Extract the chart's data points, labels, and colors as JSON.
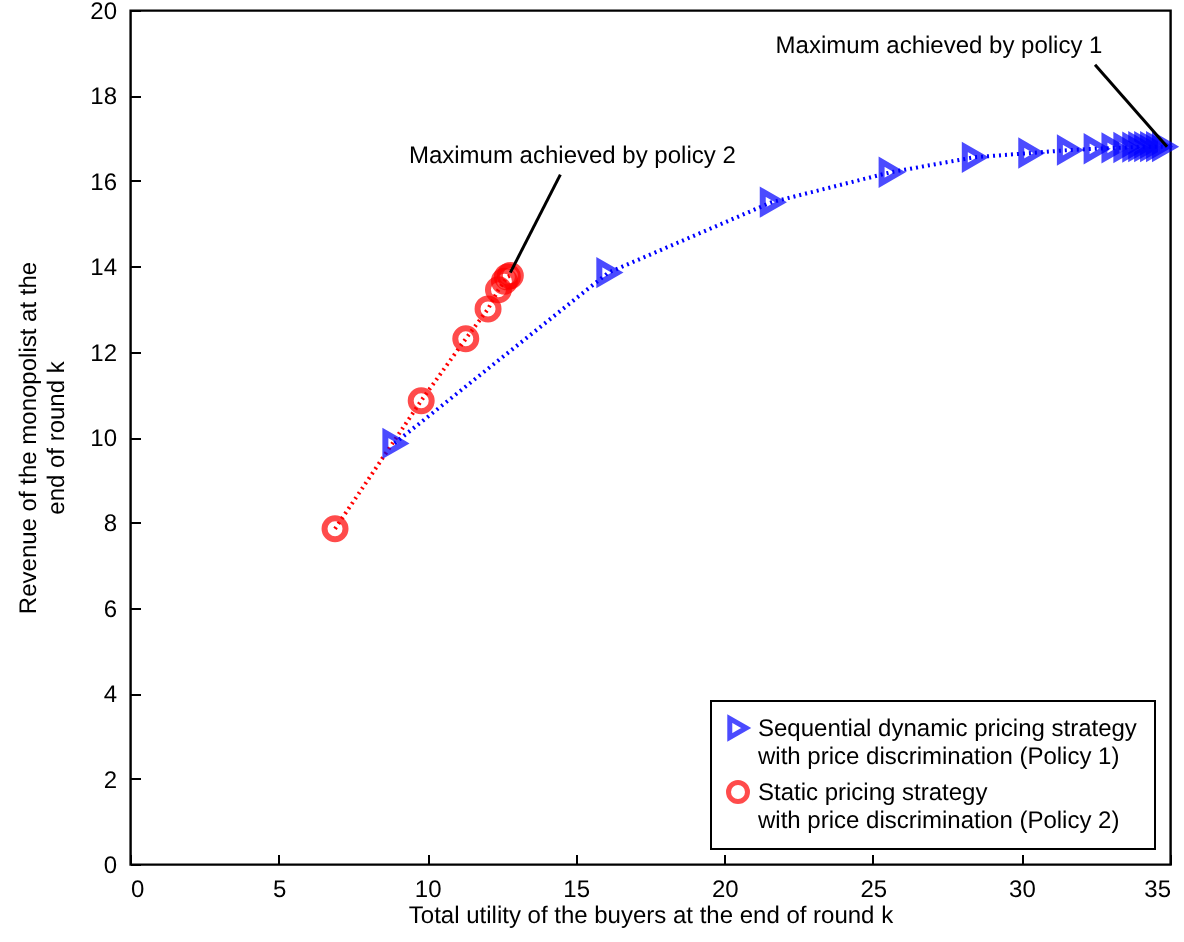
{
  "chart_data": {
    "type": "line",
    "xlabel": "Total utility of the buyers at the end of round k",
    "ylabel": "Revenue of the monopolist at the\nend of round k",
    "xlim": [
      0,
      35
    ],
    "xticks": [
      0,
      5,
      10,
      15,
      20,
      25,
      30,
      35
    ],
    "ylim": [
      0,
      20
    ],
    "yticks": [
      0,
      2,
      4,
      6,
      8,
      10,
      12,
      14,
      16,
      18,
      20
    ],
    "grid": false,
    "legend": "bottom right",
    "line_style": "dotted",
    "series": [
      {
        "name": "Sequential dynamic pricing strategy\n with price discrimination (Policy 1)",
        "color": "#0000ff",
        "marker": "triangle",
        "x": [
          8.9,
          16.1,
          21.6,
          25.6,
          28.4,
          30.3,
          31.6,
          32.5,
          33.1,
          33.5,
          33.8,
          34.0,
          34.2,
          34.4,
          34.6,
          34.8
        ],
        "values": [
          9.85,
          13.85,
          15.5,
          16.2,
          16.55,
          16.65,
          16.72,
          16.75,
          16.77,
          16.78,
          16.79,
          16.8,
          16.8,
          16.8,
          16.8,
          16.8
        ]
      },
      {
        "name": "Static pricing strategy\nwith price discrimination (Policy 2)",
        "color": "#ff0000",
        "marker": "circle",
        "x": [
          6.9,
          9.8,
          11.3,
          12.05,
          12.4,
          12.6,
          12.7,
          12.8
        ],
        "values": [
          7.85,
          10.85,
          12.3,
          13.0,
          13.45,
          13.65,
          13.75,
          13.78
        ]
      }
    ],
    "annotations": [
      {
        "text": "Maximum achieved by policy 1",
        "x": 34.9,
        "y": 16.8
      },
      {
        "text": "Maximum achieved by policy 2",
        "x": 12.8,
        "y": 13.85
      }
    ]
  }
}
